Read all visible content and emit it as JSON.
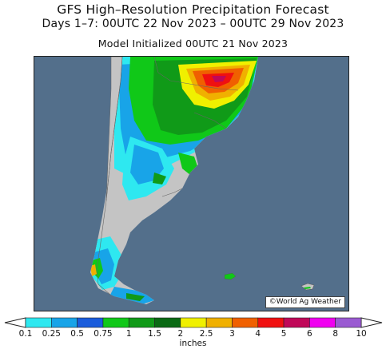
{
  "header": {
    "title": "GFS High–Resolution Precipitation Forecast",
    "subtitle": "Days 1–7: 00UTC 22 Nov 2023 – 00UTC 29 Nov 2023",
    "init_line": "Model Initialized 00UTC 21 Nov 2023"
  },
  "map": {
    "copyright": "©World Ag Weather",
    "ocean_color": "#536f8b",
    "land_color": "#c4c4c4"
  },
  "legend": {
    "units": "inches",
    "ticks": [
      "0.1",
      "0.25",
      "0.5",
      "0.75",
      "1",
      "1.5",
      "2",
      "2.5",
      "3",
      "4",
      "5",
      "6",
      "8",
      "10"
    ],
    "colors": [
      "#2ee8f0",
      "#18a4e8",
      "#1a5cdc",
      "#10c818",
      "#109a18",
      "#0a6a14",
      "#f0f000",
      "#f0b000",
      "#f06000",
      "#f01010",
      "#c00858",
      "#f000f0",
      "#9a5ad2"
    ]
  }
}
